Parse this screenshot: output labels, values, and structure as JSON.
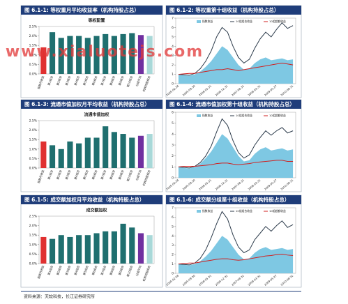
{
  "watermark": "www.xialuotejs.com",
  "source": "资料来源：天软科技，长江证券研究所",
  "chart_data": [
    {
      "type": "bar",
      "title": "图 6.1-1: 等权重月平均收益率（机构持股占总）",
      "subtitle": "等权配置",
      "categories": [
        "指数月收益",
        "第1组合",
        "第2组合",
        "第3组合",
        "第4组合",
        "第5组合",
        "第6组合",
        "第7组合",
        "第8组合",
        "第9组合",
        "第10组合",
        "分组平均",
        "机构持股组合"
      ],
      "values": [
        1.4,
        2.2,
        1.9,
        2.0,
        2.0,
        1.9,
        2.0,
        2.1,
        2.0,
        2.1,
        2.15,
        2.05,
        2.0
      ],
      "colors": [
        "#e03030",
        "#1f6f6f",
        "#1f6f6f",
        "#1f6f6f",
        "#1f6f6f",
        "#1f6f6f",
        "#1f6f6f",
        "#1f6f6f",
        "#1f6f6f",
        "#1f6f6f",
        "#1f6f6f",
        "#7030a0",
        "#a8d8d8"
      ],
      "ylim": [
        0,
        2.5
      ],
      "yticks": [
        {
          "value": 0,
          "label": "0.0%"
        },
        {
          "value": 0.5,
          "label": "0.5%"
        },
        {
          "value": 1,
          "label": "1.0%"
        },
        {
          "value": 1.5,
          "label": "1.5%"
        },
        {
          "value": 2,
          "label": "2.0%"
        },
        {
          "value": 2.5,
          "label": "2.5%"
        }
      ]
    },
    {
      "type": "line",
      "title": "图 6.1-2: 等权重第十组收益（机构持股占总）",
      "categories": [
        "2005-02-28",
        null,
        null,
        "2005-09-30",
        null,
        null,
        "2006-05-31",
        null,
        null,
        "2006-12-31",
        null,
        null,
        "2007-08-31",
        null,
        null,
        "2008-03-31",
        null,
        null,
        "2009-05-27",
        null,
        null,
        "2010-08-31"
      ],
      "series": [
        {
          "name": "指数收益",
          "color": "#7ec8e3",
          "style": "area",
          "values": [
            1,
            0.9,
            0.85,
            1.0,
            1.3,
            1.8,
            2.4,
            3.2,
            4.0,
            3.6,
            2.8,
            2.0,
            1.5,
            1.6,
            2.2,
            2.6,
            2.8,
            2.5,
            2.6,
            2.7,
            2.5,
            2.6
          ]
        },
        {
          "name": "10组组合收益",
          "color": "#2b3a4a",
          "style": "line",
          "values": [
            1,
            0.95,
            0.9,
            1.1,
            1.6,
            2.4,
            3.5,
            5.0,
            6.0,
            5.5,
            4.0,
            2.8,
            2.2,
            2.6,
            3.8,
            4.8,
            5.5,
            5.0,
            5.8,
            6.5,
            5.9,
            6.2
          ]
        },
        {
          "name": "10组超额收益",
          "color": "#d02020",
          "style": "line",
          "values": [
            1,
            1.05,
            1.1,
            1.1,
            1.2,
            1.3,
            1.4,
            1.5,
            1.5,
            1.6,
            1.5,
            1.4,
            1.5,
            1.6,
            1.7,
            1.8,
            1.9,
            2.0,
            2.1,
            2.2,
            2.1,
            2.0
          ]
        }
      ],
      "ylim": [
        0,
        7
      ],
      "yticks": [
        0,
        1,
        2,
        3,
        4,
        5,
        6,
        7
      ]
    },
    {
      "type": "bar",
      "title": "图 6.1-3: 流通市值加权月平均收益（机构持股占总）",
      "subtitle": "流通市值加权",
      "categories": [
        "指数月收益",
        "第1组合",
        "第2组合",
        "第3组合",
        "第4组合",
        "第5组合",
        "第6组合",
        "第7组合",
        "第8组合",
        "第9组合",
        "第10组合",
        "分组平均",
        "机构持股组合"
      ],
      "values": [
        1.4,
        1.2,
        1.0,
        1.4,
        1.3,
        1.6,
        1.6,
        2.2,
        1.9,
        1.8,
        1.6,
        1.7,
        1.8
      ],
      "colors": [
        "#e03030",
        "#1f6f6f",
        "#1f6f6f",
        "#1f6f6f",
        "#1f6f6f",
        "#1f6f6f",
        "#1f6f6f",
        "#1f6f6f",
        "#1f6f6f",
        "#1f6f6f",
        "#1f6f6f",
        "#7030a0",
        "#a8d8d8"
      ],
      "ylim": [
        0,
        2.5
      ],
      "yticks": [
        {
          "value": 0,
          "label": "0.0%"
        },
        {
          "value": 0.5,
          "label": "0.5%"
        },
        {
          "value": 1,
          "label": "1.0%"
        },
        {
          "value": 1.5,
          "label": "1.5%"
        },
        {
          "value": 2,
          "label": "2.0%"
        },
        {
          "value": 2.5,
          "label": "2.5%"
        }
      ]
    },
    {
      "type": "line",
      "title": "图 6.1-4: 流通市值加权第十组收益（机构持股占总）",
      "categories": [
        "2005-02-28",
        null,
        null,
        "2005-09-30",
        null,
        null,
        "2006-05-31",
        null,
        null,
        "2006-12-31",
        null,
        null,
        "2007-08-31",
        null,
        null,
        "2008-03-31",
        null,
        null,
        "2009-05-27",
        null,
        null,
        "2010-08-31"
      ],
      "series": [
        {
          "name": "指数收益",
          "color": "#7ec8e3",
          "style": "area",
          "values": [
            1,
            0.9,
            0.85,
            1.0,
            1.3,
            1.8,
            2.4,
            3.2,
            4.0,
            3.6,
            2.8,
            2.0,
            1.5,
            1.6,
            2.2,
            2.6,
            2.8,
            2.5,
            2.6,
            2.7,
            2.5,
            2.6
          ]
        },
        {
          "name": "10组组合收益",
          "color": "#2b3a4a",
          "style": "line",
          "values": [
            1,
            0.95,
            0.9,
            1.05,
            1.4,
            2.0,
            2.9,
            4.2,
            5.4,
            4.8,
            3.4,
            2.3,
            1.8,
            2.1,
            3.0,
            3.7,
            4.3,
            3.9,
            4.3,
            4.6,
            4.1,
            4.3
          ]
        },
        {
          "name": "10组超额收益",
          "color": "#d02020",
          "style": "line",
          "values": [
            1,
            1.05,
            1.05,
            1.05,
            1.1,
            1.15,
            1.2,
            1.3,
            1.35,
            1.35,
            1.25,
            1.2,
            1.25,
            1.3,
            1.4,
            1.45,
            1.5,
            1.55,
            1.6,
            1.6,
            1.5,
            1.5
          ]
        }
      ],
      "ylim": [
        0,
        6
      ],
      "yticks": [
        0,
        1,
        2,
        3,
        4,
        5,
        6
      ]
    },
    {
      "type": "bar",
      "title": "图 6.1-5: 成交额加权月平均收益（机构持股占总）",
      "subtitle": "成交额加权",
      "categories": [
        "指数月收益",
        "第1组合",
        "第2组合",
        "第3组合",
        "第4组合",
        "第5组合",
        "第6组合",
        "第7组合",
        "第8组合",
        "第9组合",
        "第10组合",
        "分组平均",
        "机构持股组合"
      ],
      "values": [
        1.4,
        1.3,
        1.5,
        1.4,
        1.5,
        1.5,
        1.6,
        1.7,
        1.7,
        2.1,
        1.9,
        1.6,
        1.5
      ],
      "colors": [
        "#e03030",
        "#1f6f6f",
        "#1f6f6f",
        "#1f6f6f",
        "#1f6f6f",
        "#1f6f6f",
        "#1f6f6f",
        "#1f6f6f",
        "#1f6f6f",
        "#1f6f6f",
        "#1f6f6f",
        "#7030a0",
        "#a8d8d8"
      ],
      "ylim": [
        0,
        2.5
      ],
      "yticks": [
        {
          "value": 0,
          "label": "0.0%"
        },
        {
          "value": 0.5,
          "label": "0.5%"
        },
        {
          "value": 1,
          "label": "1.0%"
        },
        {
          "value": 1.5,
          "label": "1.5%"
        },
        {
          "value": 2,
          "label": "2.0%"
        },
        {
          "value": 2.5,
          "label": "2.5%"
        }
      ]
    },
    {
      "type": "line",
      "title": "图 6.1-6: 成交额分组第十组收益（机构持股占总）",
      "categories": [
        "2005-02-28",
        null,
        null,
        "2005-09-30",
        null,
        null,
        "2006-05-31",
        null,
        null,
        "2006-12-31",
        null,
        null,
        "2007-08-31",
        null,
        null,
        "2008-03-31",
        null,
        null,
        "2009-05-27",
        null,
        null,
        "2010-08-31"
      ],
      "series": [
        {
          "name": "指数收益",
          "color": "#7ec8e3",
          "style": "area",
          "values": [
            1,
            0.9,
            0.85,
            1.0,
            1.3,
            1.8,
            2.4,
            3.2,
            4.0,
            3.6,
            2.8,
            2.0,
            1.5,
            1.6,
            2.2,
            2.6,
            2.8,
            2.5,
            2.6,
            2.7,
            2.5,
            2.6
          ]
        },
        {
          "name": "10组组合收益",
          "color": "#2b3a4a",
          "style": "line",
          "values": [
            1,
            0.95,
            0.9,
            1.1,
            1.6,
            2.5,
            3.8,
            5.3,
            6.6,
            5.8,
            4.1,
            2.8,
            2.2,
            2.5,
            3.6,
            4.3,
            5.0,
            4.5,
            5.1,
            5.6,
            4.9,
            5.2
          ]
        },
        {
          "name": "10组超额收益",
          "color": "#d02020",
          "style": "line",
          "values": [
            1,
            1.05,
            1.1,
            1.1,
            1.2,
            1.3,
            1.4,
            1.5,
            1.55,
            1.55,
            1.45,
            1.4,
            1.45,
            1.55,
            1.65,
            1.75,
            1.85,
            1.9,
            2.0,
            2.05,
            1.95,
            1.9
          ]
        }
      ],
      "ylim": [
        0,
        7
      ],
      "yticks": [
        0,
        1,
        2,
        3,
        4,
        5,
        6,
        7
      ]
    }
  ]
}
